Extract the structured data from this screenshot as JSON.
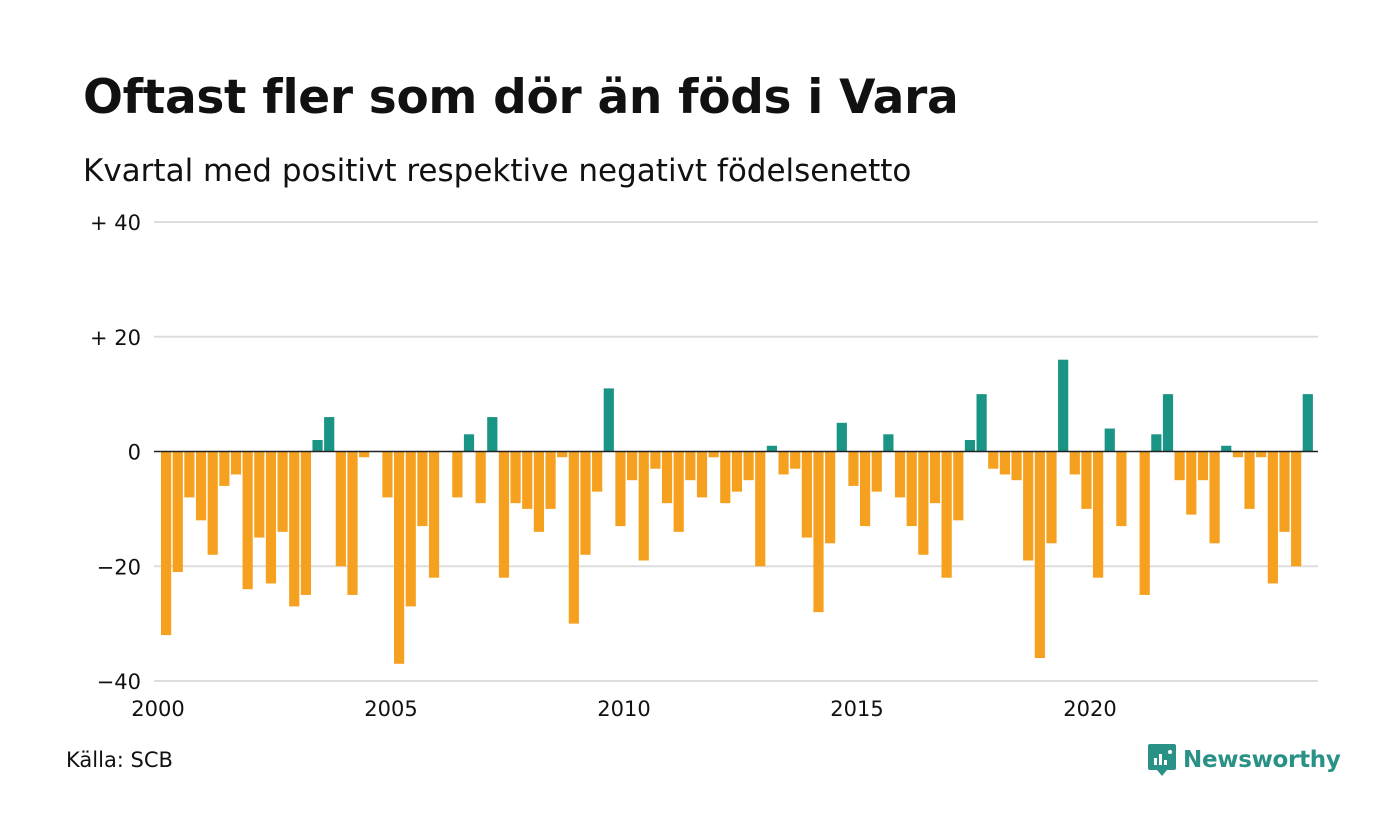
{
  "header": {
    "title": "Oftast fler som dör än föds i Vara",
    "subtitle": "Kvartal med positivt respektive negativt födelsenetto"
  },
  "footer": {
    "source": "Källa: SCB",
    "brand": "Newsworthy",
    "brand_icon": "newsworthy-logo-icon"
  },
  "colors": {
    "positive": "#1a9484",
    "negative": "#f5a11f",
    "grid": "#dddddd",
    "zero_line": "#222222",
    "brand": "#2a9187"
  },
  "chart_data": {
    "type": "bar",
    "x_start": "2000 Q1",
    "frequency": "quarterly",
    "xticks": [
      "2000",
      "2005",
      "2010",
      "2015",
      "2020"
    ],
    "yticks": [
      -40,
      -20,
      0,
      20,
      40
    ],
    "ytick_labels": [
      "−40",
      "−20",
      "0",
      "+ 20",
      "+ 40"
    ],
    "ylim": [
      -40,
      40
    ],
    "grid": true,
    "legend": "none",
    "values": [
      -32,
      -21,
      -8,
      -12,
      -18,
      -6,
      -4,
      -24,
      -15,
      -23,
      -14,
      -27,
      -25,
      2,
      6,
      -20,
      -25,
      -1,
      0,
      -8,
      -37,
      -27,
      -13,
      -22,
      0,
      -8,
      3,
      -9,
      6,
      -22,
      -9,
      -10,
      -14,
      -10,
      -1,
      -30,
      -18,
      -7,
      11,
      -13,
      -5,
      -19,
      -3,
      -9,
      -14,
      -5,
      -8,
      -1,
      -9,
      -7,
      -5,
      -20,
      1,
      -4,
      -3,
      -15,
      -28,
      -16,
      5,
      -6,
      -13,
      -7,
      3,
      -8,
      -13,
      -18,
      -9,
      -22,
      -12,
      2,
      10,
      -3,
      -4,
      -5,
      -19,
      -36,
      -16,
      16,
      -4,
      -10,
      -22,
      4,
      -13,
      0,
      -25,
      3,
      10,
      -5,
      -11,
      -5,
      -16,
      1,
      -1,
      -10,
      -1,
      -23,
      -14,
      -20,
      10
    ]
  }
}
